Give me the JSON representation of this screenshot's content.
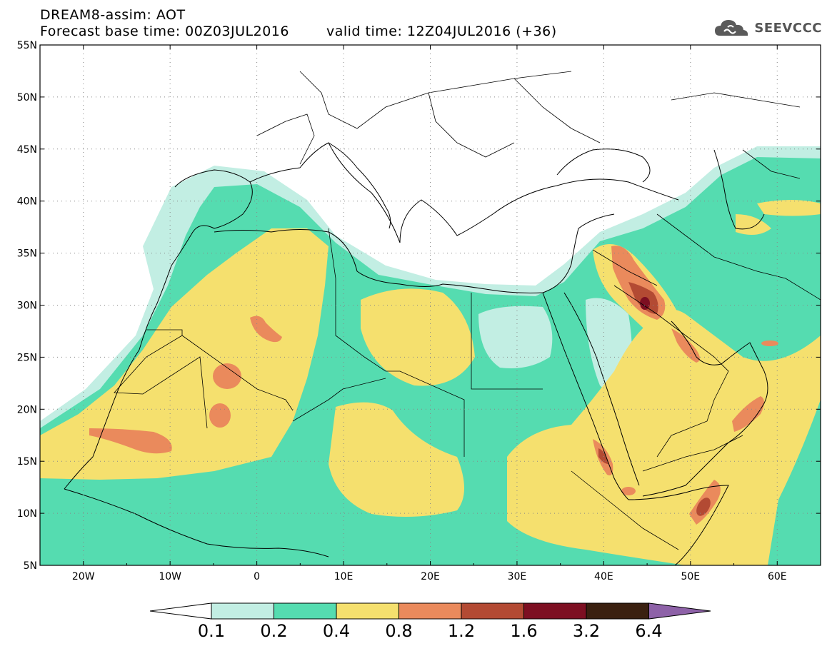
{
  "title": {
    "line1": "DREAM8-assim: AOT",
    "base_time": "Forecast base time: 00Z03JUL2016",
    "valid_time": "valid time: 12Z04JUL2016 (+36)"
  },
  "logo": {
    "text": "SEEVCCC",
    "icon": "cloud-icon"
  },
  "map": {
    "region": "Sahara, Mediterranean and Arabian Peninsula",
    "lon_range": [
      -25,
      65
    ],
    "lat_range": [
      5,
      55
    ],
    "grid": "dotted",
    "lat_ticks": [
      "55N",
      "50N",
      "45N",
      "40N",
      "35N",
      "30N",
      "25N",
      "20N",
      "15N",
      "10N",
      "5N"
    ],
    "lon_ticks": [
      "20W",
      "10W",
      "0",
      "10E",
      "20E",
      "30E",
      "40E",
      "50E",
      "60E"
    ]
  },
  "colorbar": {
    "labels": [
      "0.1",
      "0.2",
      "0.4",
      "0.8",
      "1.2",
      "1.6",
      "3.2",
      "6.4"
    ],
    "colors": [
      "#c2eee3",
      "#55dcb0",
      "#f5e06e",
      "#ea8a5c",
      "#b34a33",
      "#7d0f22",
      "#3a2010",
      "#8e62a8"
    ]
  }
}
